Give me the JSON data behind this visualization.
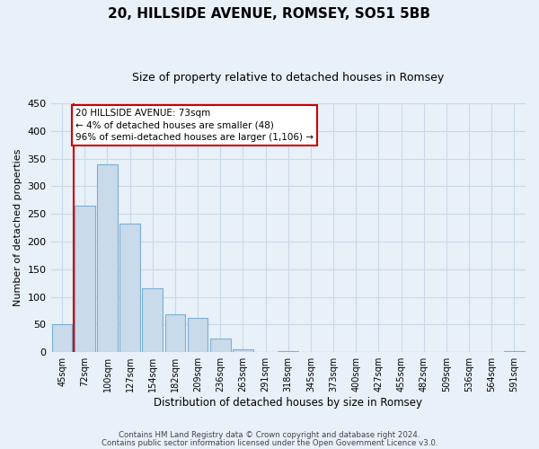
{
  "title": "20, HILLSIDE AVENUE, ROMSEY, SO51 5BB",
  "subtitle": "Size of property relative to detached houses in Romsey",
  "xlabel": "Distribution of detached houses by size in Romsey",
  "ylabel": "Number of detached properties",
  "bin_labels": [
    "45sqm",
    "72sqm",
    "100sqm",
    "127sqm",
    "154sqm",
    "182sqm",
    "209sqm",
    "236sqm",
    "263sqm",
    "291sqm",
    "318sqm",
    "345sqm",
    "373sqm",
    "400sqm",
    "427sqm",
    "455sqm",
    "482sqm",
    "509sqm",
    "536sqm",
    "564sqm",
    "591sqm"
  ],
  "bar_values": [
    50,
    265,
    340,
    232,
    115,
    68,
    62,
    25,
    6,
    0,
    2,
    0,
    0,
    0,
    0,
    0,
    0,
    0,
    0,
    0,
    2
  ],
  "bar_color": "#c9daea",
  "bar_edge_color": "#7bafd4",
  "vline_color": "#cc0000",
  "annotation_text": "20 HILLSIDE AVENUE: 73sqm\n← 4% of detached houses are smaller (48)\n96% of semi-detached houses are larger (1,106) →",
  "annotation_box_color": "#ffffff",
  "annotation_box_edge": "#cc0000",
  "ylim": [
    0,
    450
  ],
  "yticks": [
    0,
    50,
    100,
    150,
    200,
    250,
    300,
    350,
    400,
    450
  ],
  "grid_color": "#c8d8e8",
  "background_color": "#e8f0f8",
  "footer1": "Contains HM Land Registry data © Crown copyright and database right 2024.",
  "footer2": "Contains public sector information licensed under the Open Government Licence v3.0."
}
